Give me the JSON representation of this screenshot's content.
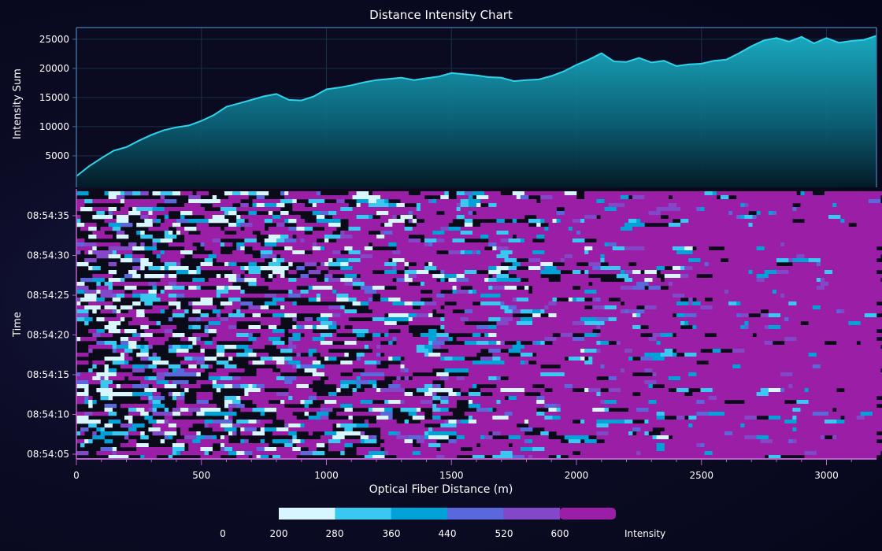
{
  "page": {
    "title": "Distance Intensity Chart"
  },
  "colors": {
    "area_line": "#29c8e0",
    "area_fill_top": "#1aa7bd",
    "area_fill_bottom": "#052a36",
    "axis_top": "#3d6d9a",
    "axis_bottom": "#b763c9",
    "grid": "#1c2f4a",
    "text": "#ffffff"
  },
  "chart_data": [
    {
      "type": "area",
      "title": "Distance Intensity Chart",
      "ylabel": "Intensity Sum",
      "xlim": [
        0,
        3200
      ],
      "ylim": [
        0,
        27000
      ],
      "yticks": [
        5000,
        10000,
        15000,
        20000,
        25000
      ],
      "x": [
        0,
        50,
        100,
        150,
        200,
        250,
        300,
        350,
        400,
        450,
        500,
        550,
        600,
        650,
        700,
        750,
        800,
        850,
        900,
        950,
        1000,
        1050,
        1100,
        1150,
        1200,
        1250,
        1300,
        1350,
        1400,
        1450,
        1500,
        1550,
        1600,
        1650,
        1700,
        1750,
        1800,
        1850,
        1900,
        1950,
        2000,
        2050,
        2100,
        2150,
        2200,
        2250,
        2300,
        2350,
        2400,
        2450,
        2500,
        2550,
        2600,
        2650,
        2700,
        2750,
        2800,
        2850,
        2900,
        2950,
        3000,
        3050,
        3100,
        3150,
        3200
      ],
      "y": [
        1500,
        3200,
        4600,
        5900,
        6500,
        7600,
        8600,
        9400,
        9900,
        10200,
        11000,
        12000,
        13400,
        14000,
        14600,
        15200,
        15600,
        14600,
        14500,
        15200,
        16400,
        16700,
        17100,
        17600,
        18000,
        18200,
        18400,
        18000,
        18300,
        18600,
        19200,
        19000,
        18800,
        18500,
        18400,
        17800,
        18000,
        18100,
        18700,
        19500,
        20600,
        21500,
        22600,
        21200,
        21100,
        21800,
        21000,
        21300,
        20400,
        20700,
        20800,
        21300,
        21500,
        22600,
        23800,
        24800,
        25200,
        24600,
        25400,
        24300,
        25200,
        24400,
        24700,
        24900,
        25600
      ]
    },
    {
      "type": "heatmap",
      "xlabel": "Optical Fiber Distance (m)",
      "ylabel": "Time",
      "xlim": [
        0,
        3200
      ],
      "xticks": [
        0,
        500,
        1000,
        1500,
        2000,
        2500,
        3000
      ],
      "yticks": [
        "08:54:05",
        "08:54:10",
        "08:54:15",
        "08:54:20",
        "08:54:25",
        "08:54:30",
        "08:54:35"
      ],
      "rows": 68,
      "columns": 200
    }
  ],
  "legend": {
    "title": "Intensity",
    "labels": [
      "0",
      "200",
      "280",
      "360",
      "440",
      "520",
      "600"
    ],
    "colors": [
      "#d8f6ff",
      "#39c9f0",
      "#00a2d8",
      "#5a68dc",
      "#8248c8",
      "#9b1fa6"
    ]
  }
}
